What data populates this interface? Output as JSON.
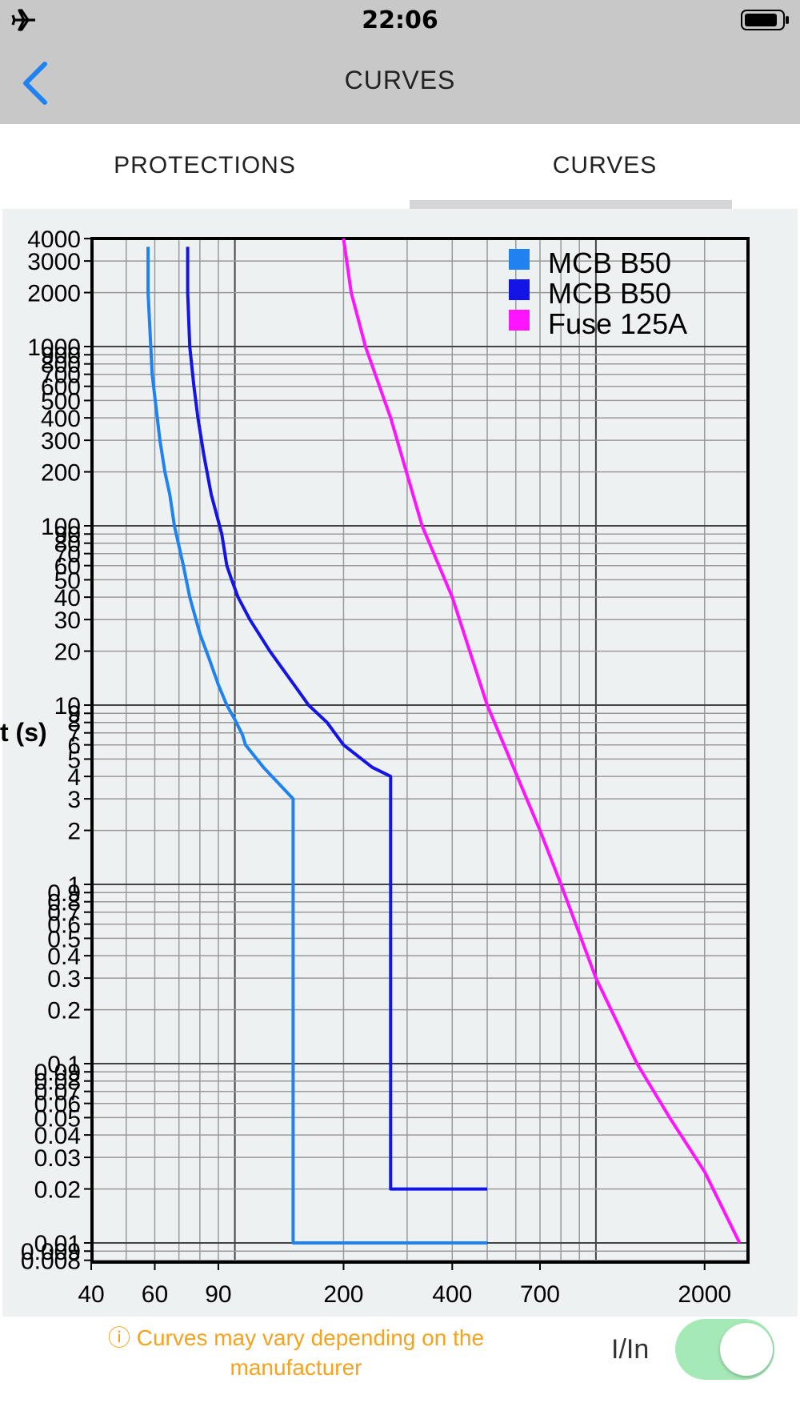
{
  "status_bar": {
    "time": "22:06",
    "left_icon": "airplane-mode-icon",
    "right_icon": "battery-icon"
  },
  "nav": {
    "title": "CURVES",
    "back_icon": "chevron-left-icon"
  },
  "tabs": [
    {
      "label": "PROTECTIONS",
      "selected": false
    },
    {
      "label": "CURVES",
      "selected": true
    }
  ],
  "colors": {
    "accent": "#1e82f0",
    "mcb_light": "#1e82f0",
    "mcb_dark": "#1414e6",
    "fuse": "#ff14ff",
    "note": "#f5a21f",
    "toggle_on": "#a5e9b6"
  },
  "chart_data": {
    "type": "line",
    "x_scale": "log",
    "y_scale": "log",
    "grid": true,
    "legend_position": "top-right",
    "ylabel": "t (s)",
    "xlabel": "",
    "xlim": [
      40,
      2600
    ],
    "ylim": [
      0.008,
      4000
    ],
    "x_tick_labels": [
      "40",
      "60",
      "90",
      "200",
      "400",
      "700",
      "2000"
    ],
    "y_tick_labels": [
      "4000",
      "3000",
      "2000",
      "1000",
      "900",
      "800",
      "700",
      "600",
      "500",
      "400",
      "300",
      "200",
      "100",
      "90",
      "80",
      "70",
      "60",
      "50",
      "40",
      "30",
      "20",
      "10",
      "9",
      "8",
      "7",
      "6",
      "5",
      "4",
      "3",
      "2",
      "1",
      "0.9",
      "0.8",
      "0.7",
      "0.6",
      "0.5",
      "0.4",
      "0.3",
      "0.2",
      "0.1",
      "0.09",
      "0.08",
      "0.07",
      "0.06",
      "0.05",
      "0.04",
      "0.03",
      "0.02",
      "0.01",
      "0.009",
      "0.008"
    ],
    "series": [
      {
        "name": "MCB B50",
        "color": "#1e82f0",
        "points": [
          [
            57.5,
            3600
          ],
          [
            57.5,
            2000
          ],
          [
            59,
            700
          ],
          [
            62,
            300
          ],
          [
            64,
            200
          ],
          [
            66,
            150
          ],
          [
            68,
            100
          ],
          [
            72,
            60
          ],
          [
            75,
            40
          ],
          [
            80,
            25
          ],
          [
            85,
            18
          ],
          [
            90,
            13
          ],
          [
            95,
            10
          ],
          [
            100,
            8.3
          ],
          [
            105,
            6.8
          ],
          [
            107,
            6
          ],
          [
            120,
            4.5
          ],
          [
            145,
            3
          ],
          [
            145,
            0.01
          ],
          [
            500,
            0.01
          ]
        ]
      },
      {
        "name": "MCB B50",
        "color": "#1414e6",
        "points": [
          [
            74,
            3600
          ],
          [
            74,
            2000
          ],
          [
            75,
            1000
          ],
          [
            77,
            600
          ],
          [
            79,
            400
          ],
          [
            82,
            250
          ],
          [
            86,
            150
          ],
          [
            92,
            90
          ],
          [
            95,
            60
          ],
          [
            98,
            50
          ],
          [
            102,
            40
          ],
          [
            110,
            30
          ],
          [
            125,
            20
          ],
          [
            150,
            12
          ],
          [
            160,
            10
          ],
          [
            180,
            8
          ],
          [
            200,
            6
          ],
          [
            240,
            4.5
          ],
          [
            270,
            4
          ],
          [
            270,
            0.02
          ],
          [
            500,
            0.02
          ]
        ]
      },
      {
        "name": "Fuse 125A",
        "color": "#ff14ff",
        "points": [
          [
            200,
            4000
          ],
          [
            210,
            2000
          ],
          [
            230,
            1000
          ],
          [
            270,
            400
          ],
          [
            330,
            100
          ],
          [
            400,
            40
          ],
          [
            500,
            10
          ],
          [
            700,
            2
          ],
          [
            800,
            1
          ],
          [
            1000,
            0.3
          ],
          [
            1300,
            0.1
          ],
          [
            1600,
            0.05
          ],
          [
            2000,
            0.025
          ],
          [
            2500,
            0.01
          ]
        ]
      }
    ]
  },
  "footer": {
    "note_icon": "info-icon",
    "note": "ⓘ Curves may vary depending on the manufacturer",
    "toggle_label": "I/In",
    "toggle_on": true
  }
}
